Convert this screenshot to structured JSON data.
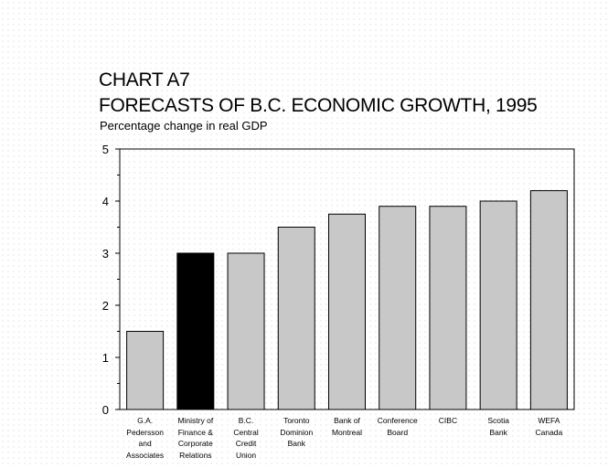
{
  "chart_data": {
    "type": "bar",
    "title_line1": "CHART A7",
    "title_line2": "FORECASTS OF B.C. ECONOMIC GROWTH, 1995",
    "subtitle": "Percentage change in real GDP",
    "categories": [
      [
        "G.A.",
        "Pedersson",
        "and",
        "Associates"
      ],
      [
        "Ministry of",
        "Finance &",
        "Corporate",
        "Relations"
      ],
      [
        "B.C.",
        "Central",
        "Credit",
        "Union"
      ],
      [
        "Toronto",
        "Dominion",
        "Bank"
      ],
      [
        "Bank of",
        "Montreal"
      ],
      [
        "Conference",
        "Board"
      ],
      [
        "CIBC"
      ],
      [
        "Scotia",
        "Bank"
      ],
      [
        "WEFA",
        "Canada"
      ]
    ],
    "values": [
      1.5,
      3.0,
      3.0,
      3.5,
      3.75,
      3.9,
      3.9,
      4.0,
      4.2
    ],
    "highlight_index": 1,
    "ylim": [
      0,
      5
    ],
    "yticks": [
      0,
      1,
      2,
      3,
      4,
      5
    ],
    "colors": {
      "bar": "#c8c8c8",
      "highlight": "#000000",
      "outline": "#000000"
    },
    "grid": false,
    "legend": "none"
  }
}
